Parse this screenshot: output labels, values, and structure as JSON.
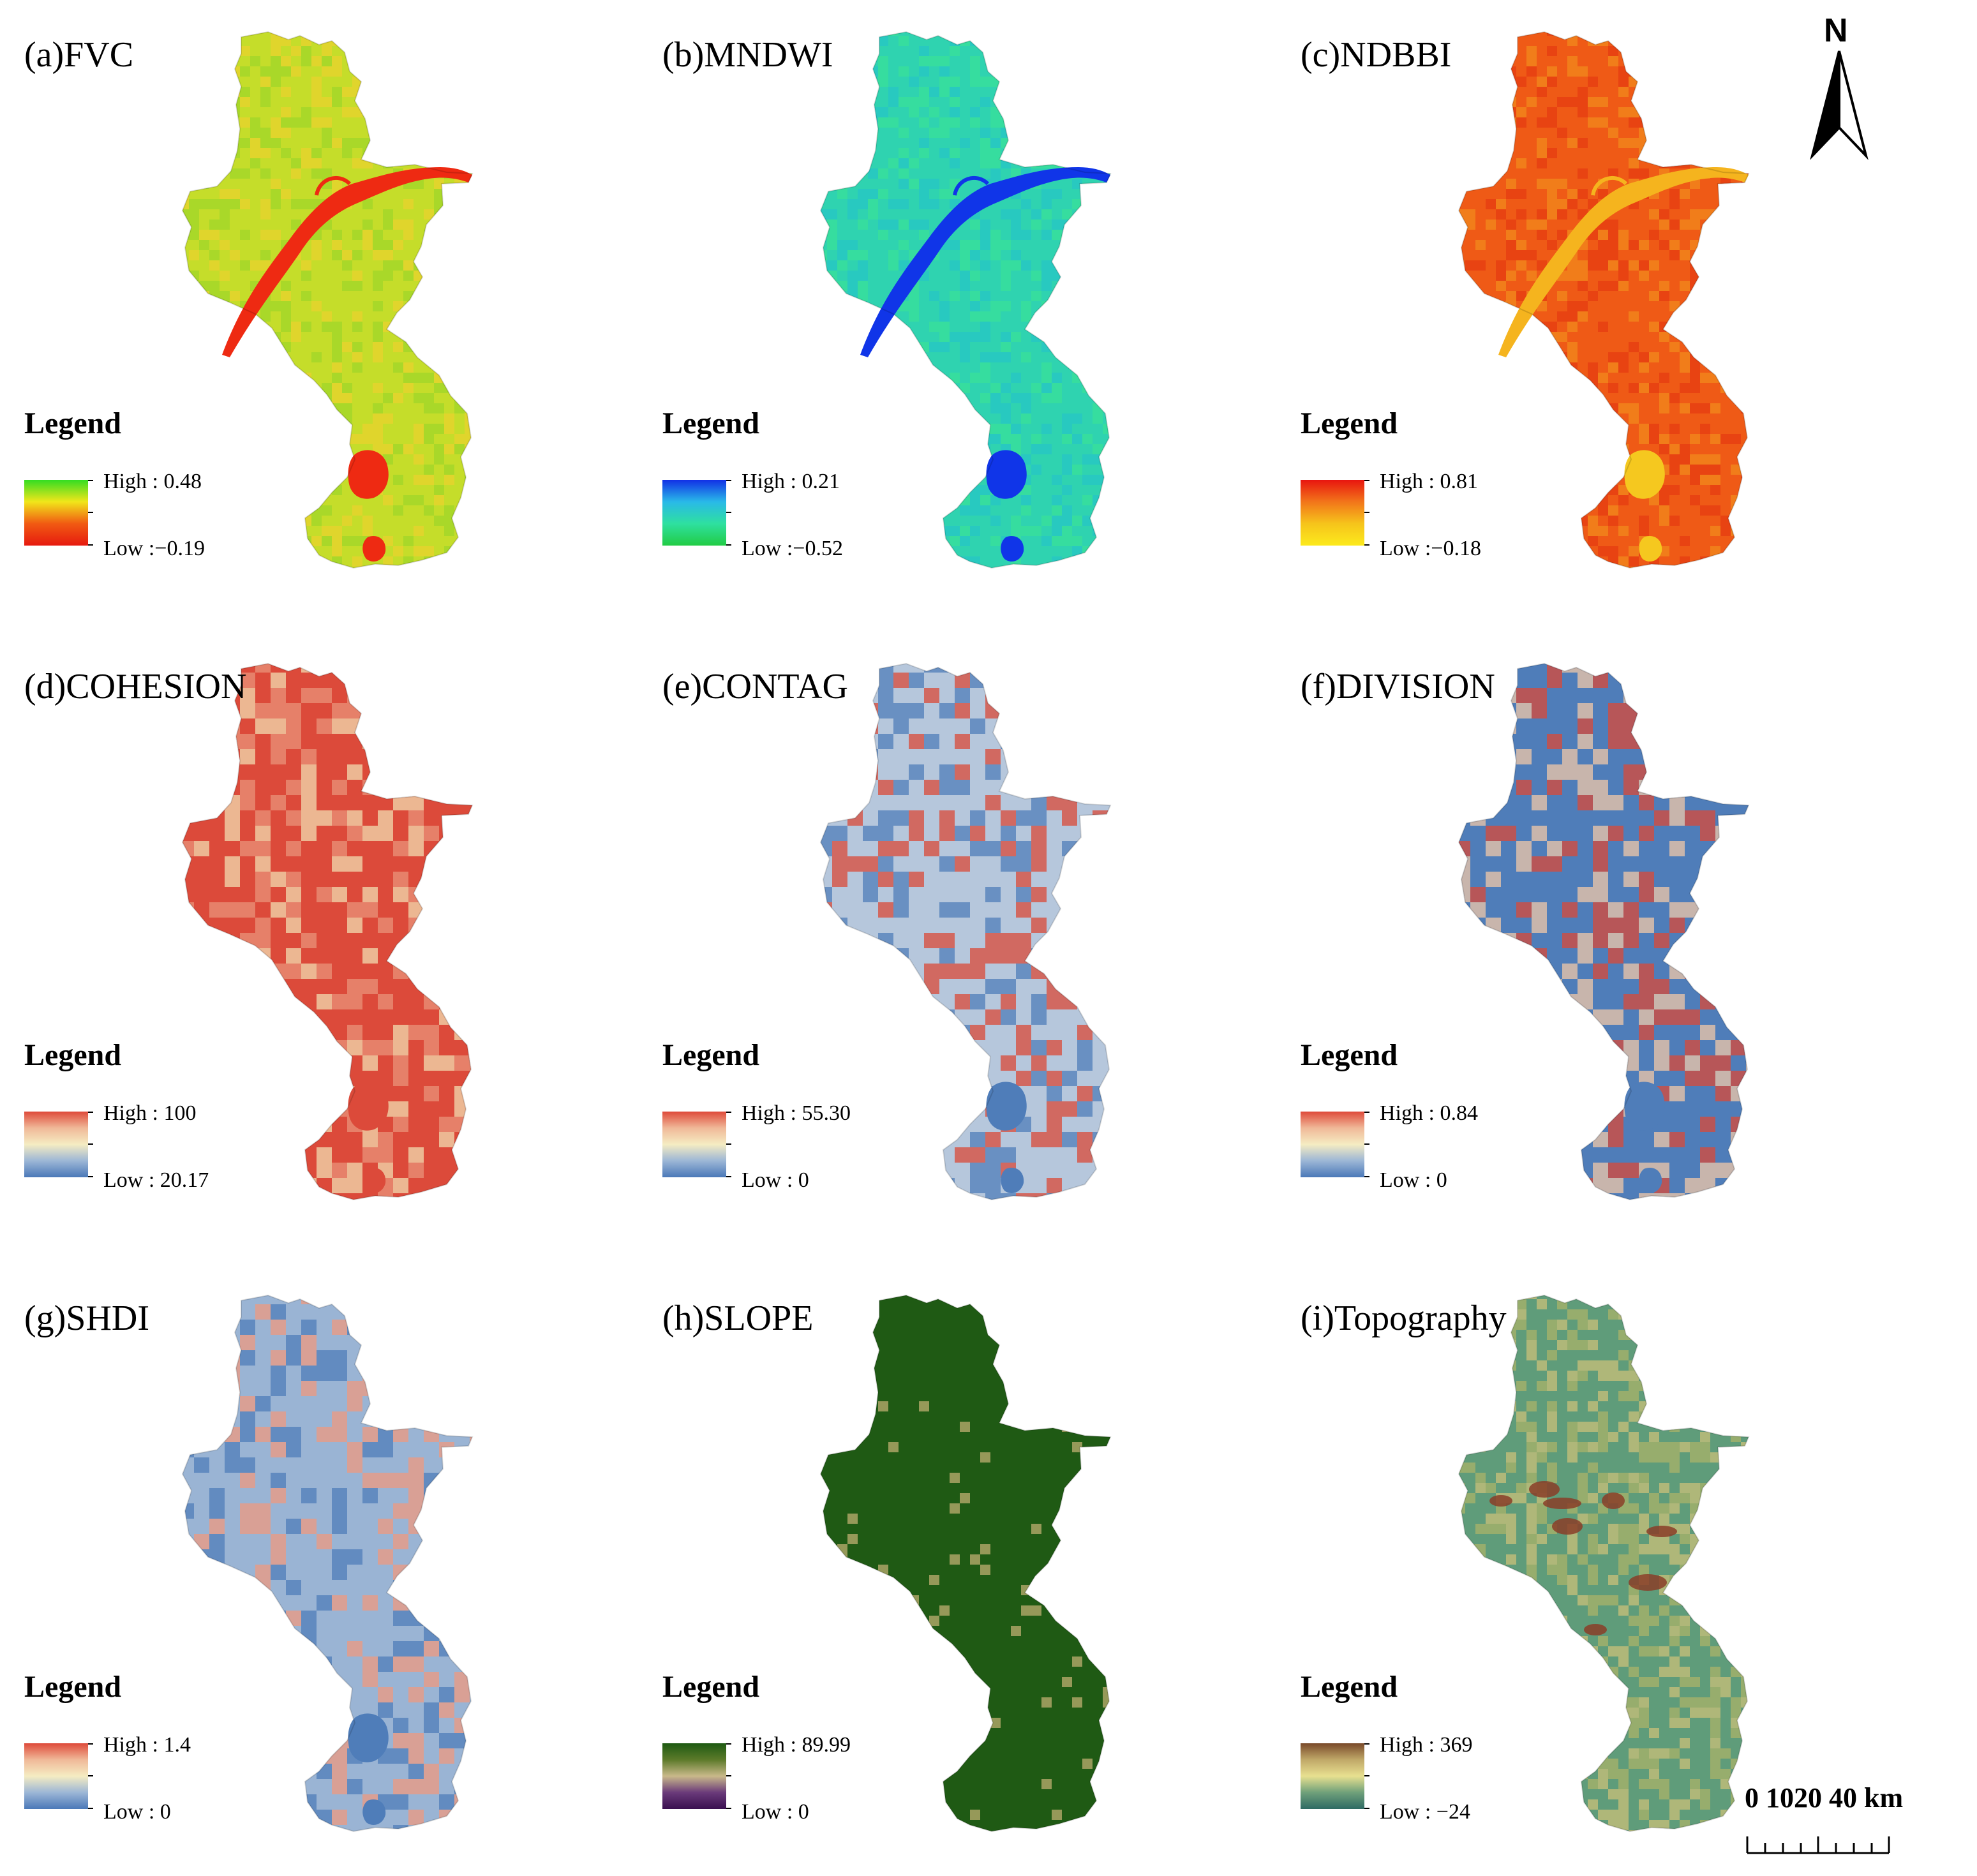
{
  "panels": [
    {
      "id": "fvc",
      "title": "(a)FVC",
      "legend_title": "Legend",
      "high": "High : 0.48",
      "low": "Low :−0.19",
      "gradient": [
        "#33dd22",
        "#f1e61a",
        "#f15a12",
        "#e61a0f"
      ],
      "map_fill": "#c5dd2a",
      "features": [
        {
          "kind": "river",
          "color": "#ee2a12"
        },
        {
          "kind": "lake",
          "color": "#ee2a12"
        }
      ],
      "texture": [
        "#9fd62a",
        "#e8d22e"
      ]
    },
    {
      "id": "mndwi",
      "title": "(b)MNDWI",
      "legend_title": "Legend",
      "high": "High : 0.21",
      "low": "Low :−0.52",
      "gradient": [
        "#1130e6",
        "#29b9e8",
        "#2ee0a0",
        "#22cc44"
      ],
      "map_fill": "#2fd3b0",
      "features": [
        {
          "kind": "river",
          "color": "#1035e8"
        },
        {
          "kind": "lake",
          "color": "#1035e8"
        }
      ],
      "texture": [
        "#27c6c6",
        "#3ae09a"
      ]
    },
    {
      "id": "ndbbi",
      "title": "(c)NDBBI",
      "legend_title": "Legend",
      "high": "High : 0.81",
      "low": "Low :−0.18",
      "gradient": [
        "#e8150f",
        "#f2751a",
        "#f6c41b",
        "#fcea1c"
      ],
      "map_fill": "#ef5a16",
      "features": [
        {
          "kind": "river",
          "color": "#f5b41e"
        },
        {
          "kind": "lake",
          "color": "#f5c81f"
        }
      ],
      "texture": [
        "#e63c12",
        "#f28a1c"
      ]
    },
    {
      "id": "cohesion",
      "title": "(d)COHESION",
      "legend_title": "Legend",
      "high": "High : 100",
      "low": "Low : 20.17",
      "gradient": [
        "#de4a3a",
        "#f0b898",
        "#f5ecc2",
        "#9cb6d6",
        "#4a78b8"
      ],
      "map_fill": "#dc4a3a",
      "features": [
        {
          "kind": "lake",
          "color": "#dc4a3a"
        }
      ],
      "texture": [
        "#e9937a",
        "#f2dcb0"
      ]
    },
    {
      "id": "contag",
      "title": "(e)CONTAG",
      "legend_title": "Legend",
      "high": "High : 55.30",
      "low": "Low : 0",
      "gradient": [
        "#de4a3a",
        "#f0b898",
        "#f5ecc2",
        "#9cb6d6",
        "#4a78b8"
      ],
      "map_fill": "#b6c7dc",
      "features": [
        {
          "kind": "lake",
          "color": "#4f7db9"
        }
      ],
      "texture": [
        "#d94a38",
        "#4f7db9"
      ]
    },
    {
      "id": "division",
      "title": "(f)DIVISION",
      "legend_title": "Legend",
      "high": "High : 0.84",
      "low": "Low : 0",
      "gradient": [
        "#de4a3a",
        "#f0b898",
        "#f5ecc2",
        "#9cb6d6",
        "#4a78b8"
      ],
      "map_fill": "#4f7db9",
      "features": [
        {
          "kind": "lake",
          "color": "#4f7db9"
        }
      ],
      "texture": [
        "#f0c8a8",
        "#d94a38"
      ]
    },
    {
      "id": "shdi",
      "title": "(g)SHDI",
      "legend_title": "Legend",
      "high": "High : 1.4",
      "low": "Low : 0",
      "gradient": [
        "#de4a3a",
        "#f0b898",
        "#f5ecc2",
        "#9cb6d6",
        "#4a78b8"
      ],
      "map_fill": "#9ab4d4",
      "features": [
        {
          "kind": "lake",
          "color": "#4f7db9"
        }
      ],
      "texture": [
        "#ee9a80",
        "#4f7db9"
      ]
    },
    {
      "id": "slope",
      "title": "(h)SLOPE",
      "legend_title": "Legend",
      "high": "High : 89.99",
      "low": "Low : 0",
      "gradient": [
        "#1e5a12",
        "#5c7a2a",
        "#c9b98a",
        "#6a3a7a",
        "#3a1050"
      ],
      "map_fill": "#1f5a14",
      "features": [],
      "texture": [
        "#a3a060",
        "#c8b88a"
      ]
    },
    {
      "id": "topography",
      "title": "(i)Topography",
      "legend_title": "Legend",
      "high": "High : 369",
      "low": "Low : −24",
      "gradient": [
        "#7a4a2a",
        "#c0a868",
        "#e8e090",
        "#6fa07a",
        "#2e6a64"
      ],
      "map_fill": "#5f9c7a",
      "features": [
        {
          "kind": "peaks",
          "color": "#8a3e28"
        }
      ],
      "texture": [
        "#a9b36a",
        "#c9c07a"
      ]
    }
  ],
  "north_arrow": {
    "label": "N"
  },
  "scale_bar": {
    "label": "0 1020    40 km"
  }
}
